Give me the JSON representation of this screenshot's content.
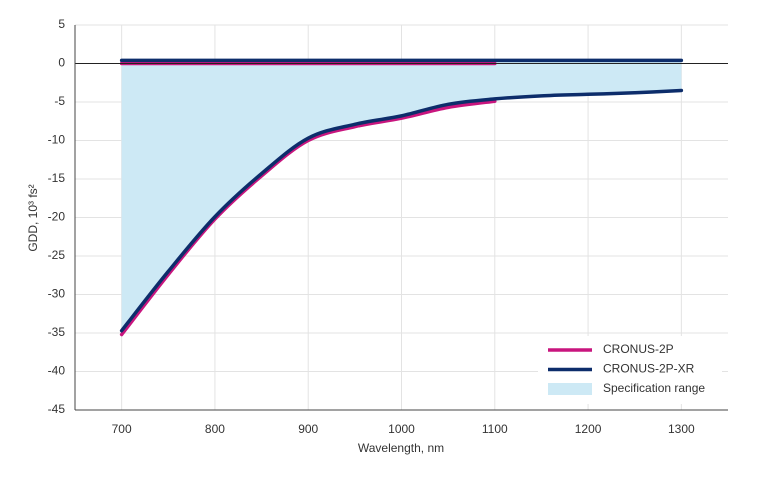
{
  "chart_data": {
    "type": "line",
    "x_label": "Wavelength, nm",
    "y_label": "GDD, 10³ fs²",
    "xlim": [
      650,
      1350
    ],
    "xticks": [
      700,
      800,
      900,
      1000,
      1100,
      1200,
      1300
    ],
    "ylim": [
      -45,
      5
    ],
    "yticks": [
      5,
      0,
      -5,
      -10,
      -15,
      -20,
      -25,
      -30,
      -35,
      -40,
      -45
    ],
    "grid": true,
    "legend": "lower-right",
    "series": [
      {
        "name": "CRONUS-2P",
        "color": "#c8157e",
        "kind": "line",
        "x": [
          700,
          750,
          800,
          850,
          900,
          950,
          1000,
          1050,
          1100
        ],
        "upper": [
          0,
          0,
          0,
          0,
          0,
          0,
          0,
          0,
          0
        ],
        "lower": [
          -35.2,
          -27.4,
          -20.2,
          -14.6,
          -10.0,
          -8.2,
          -7.1,
          -5.7,
          -4.9
        ]
      },
      {
        "name": "CRONUS-2P-XR",
        "color": "#0d2d6b",
        "kind": "line",
        "x": [
          700,
          750,
          800,
          850,
          900,
          950,
          1000,
          1050,
          1100,
          1150,
          1200,
          1250,
          1300
        ],
        "upper": [
          0.4,
          0.4,
          0.4,
          0.4,
          0.4,
          0.4,
          0.4,
          0.4,
          0.4,
          0.4,
          0.4,
          0.4,
          0.4
        ],
        "lower": [
          -34.7,
          -27.0,
          -19.9,
          -14.3,
          -9.7,
          -7.9,
          -6.8,
          -5.3,
          -4.6,
          -4.2,
          -4.0,
          -3.8,
          -3.5
        ]
      },
      {
        "name": "Specification range",
        "color": "#cde9f5",
        "kind": "area",
        "x": [
          700,
          750,
          800,
          850,
          900,
          950,
          1000,
          1050,
          1100,
          1150,
          1200,
          1250,
          1300
        ],
        "upper": [
          0.4,
          0.4,
          0.4,
          0.4,
          0.4,
          0.4,
          0.4,
          0.4,
          0.4,
          0.4,
          0.4,
          0.4,
          0.4
        ],
        "lower": [
          -34.7,
          -27.0,
          -19.9,
          -14.3,
          -9.7,
          -7.9,
          -6.8,
          -5.3,
          -4.6,
          -4.2,
          -4.0,
          -3.8,
          -3.5
        ]
      }
    ]
  }
}
